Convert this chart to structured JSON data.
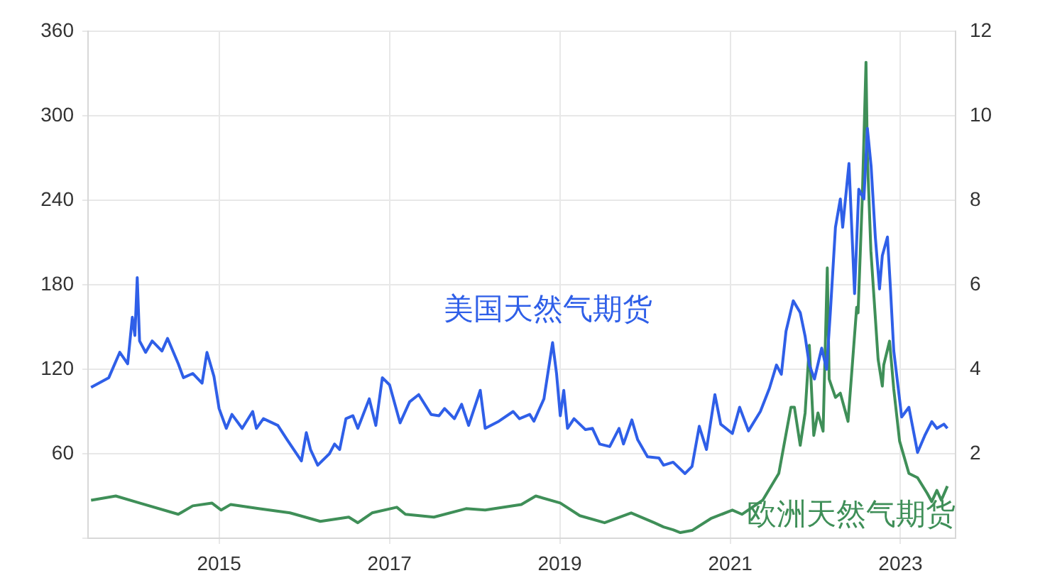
{
  "chart_data": {
    "type": "line",
    "xlim": [
      "2013-06-18",
      "2023-08-25"
    ],
    "xticks": [
      "2015",
      "2017",
      "2019",
      "2021",
      "2023"
    ],
    "ylim": [
      0,
      360
    ],
    "yticks": [
      {
        "value": 0,
        "label": null
      },
      60,
      120,
      180,
      240,
      300,
      360
    ],
    "y2lim": [
      0,
      12
    ],
    "y2ticks": [
      2,
      4,
      6,
      8,
      10,
      12
    ],
    "grid": true,
    "legend": false,
    "marker": "none",
    "line_style": "solid",
    "series": [
      {
        "name": "美国天然气期货",
        "color": "#2f5fe8",
        "axis": "y2",
        "x": [
          "2013-07-01",
          "2013-09-15",
          "2013-11-01",
          "2013-12-05",
          "2013-12-25",
          "2014-01-05",
          "2014-01-15",
          "2014-01-25",
          "2014-02-20",
          "2014-03-20",
          "2014-05-01",
          "2014-05-25",
          "2014-07-10",
          "2014-08-01",
          "2014-09-10",
          "2014-10-20",
          "2014-11-10",
          "2014-12-10",
          "2015-01-01",
          "2015-02-01",
          "2015-02-25",
          "2015-04-10",
          "2015-05-25",
          "2015-06-10",
          "2015-07-10",
          "2015-09-10",
          "2015-10-20",
          "2015-12-20",
          "2016-01-10",
          "2016-01-28",
          "2016-02-28",
          "2016-04-18",
          "2016-05-10",
          "2016-06-01",
          "2016-06-28",
          "2016-07-28",
          "2016-08-18",
          "2016-10-06",
          "2016-11-03",
          "2016-12-01",
          "2017-01-01",
          "2017-02-15",
          "2017-03-28",
          "2017-05-06",
          "2017-06-28",
          "2017-08-01",
          "2017-08-25",
          "2017-10-06",
          "2017-11-06",
          "2017-12-06",
          "2018-01-25",
          "2018-02-15",
          "2018-04-15",
          "2018-06-15",
          "2018-07-12",
          "2018-08-25",
          "2018-09-12",
          "2018-10-25",
          "2018-12-01",
          "2018-12-18",
          "2019-01-03",
          "2019-01-18",
          "2019-02-03",
          "2019-03-03",
          "2019-04-21",
          "2019-05-21",
          "2019-06-21",
          "2019-08-03",
          "2019-09-12",
          "2019-10-01",
          "2019-11-06",
          "2019-12-01",
          "2020-01-12",
          "2020-03-01",
          "2020-03-21",
          "2020-05-01",
          "2020-06-21",
          "2020-07-21",
          "2020-08-21",
          "2020-09-21",
          "2020-10-27",
          "2020-11-21",
          "2021-01-10",
          "2021-02-10",
          "2021-03-20",
          "2021-05-10",
          "2021-06-18",
          "2021-07-18",
          "2021-08-08",
          "2021-08-28",
          "2021-09-28",
          "2021-10-28",
          "2021-11-18",
          "2021-12-06",
          "2021-12-28",
          "2022-01-28",
          "2022-02-18",
          "2022-03-06",
          "2022-03-28",
          "2022-04-18",
          "2022-04-28",
          "2022-05-25",
          "2022-06-18",
          "2022-07-06",
          "2022-07-28",
          "2022-08-12",
          "2022-08-28",
          "2022-09-15",
          "2022-10-03",
          "2022-10-15",
          "2022-11-06",
          "2022-11-18",
          "2022-12-03",
          "2023-01-06",
          "2023-02-06",
          "2023-03-15",
          "2023-04-15",
          "2023-05-15",
          "2023-06-06",
          "2023-07-06",
          "2023-07-21"
        ],
        "values": [
          3.57,
          3.8,
          4.4,
          4.13,
          5.23,
          4.8,
          6.17,
          4.67,
          4.4,
          4.67,
          4.43,
          4.73,
          4.13,
          3.8,
          3.9,
          3.67,
          4.4,
          3.83,
          3.07,
          2.6,
          2.93,
          2.6,
          3.0,
          2.6,
          2.83,
          2.67,
          2.33,
          1.83,
          2.5,
          2.1,
          1.73,
          2.0,
          2.23,
          2.1,
          2.83,
          2.9,
          2.6,
          3.3,
          2.67,
          3.8,
          3.63,
          2.73,
          3.23,
          3.4,
          2.93,
          2.9,
          3.07,
          2.83,
          3.17,
          2.67,
          3.5,
          2.6,
          2.77,
          3.0,
          2.83,
          2.93,
          2.77,
          3.3,
          4.63,
          3.9,
          2.9,
          3.5,
          2.6,
          2.83,
          2.57,
          2.6,
          2.23,
          2.17,
          2.6,
          2.23,
          2.8,
          2.33,
          1.93,
          1.9,
          1.73,
          1.8,
          1.53,
          1.7,
          2.65,
          2.1,
          3.4,
          2.7,
          2.48,
          3.1,
          2.54,
          3.0,
          3.55,
          4.1,
          3.88,
          4.9,
          5.62,
          5.34,
          4.78,
          4.1,
          3.77,
          4.5,
          4.0,
          5.34,
          7.36,
          8.03,
          7.36,
          8.87,
          5.79,
          8.26,
          8.03,
          9.7,
          8.8,
          7.13,
          5.9,
          6.69,
          7.13,
          6.0,
          4.44,
          2.87,
          3.1,
          2.03,
          2.43,
          2.76,
          2.6,
          2.7,
          2.6
        ]
      },
      {
        "name": "欧洲天然气期货",
        "color": "#3f8f58",
        "x": [
          "2013-07-01",
          "2013-10-15",
          "2014-01-25",
          "2014-07-10",
          "2014-09-10",
          "2014-12-01",
          "2015-01-10",
          "2015-02-20",
          "2015-06-20",
          "2015-11-01",
          "2016-03-10",
          "2016-07-10",
          "2016-08-18",
          "2016-10-18",
          "2017-02-01",
          "2017-03-10",
          "2017-07-10",
          "2017-11-25",
          "2018-02-15",
          "2018-07-20",
          "2018-09-20",
          "2019-01-03",
          "2019-03-28",
          "2019-07-12",
          "2019-11-03",
          "2020-02-10",
          "2020-03-21",
          "2020-05-01",
          "2020-06-01",
          "2020-07-21",
          "2020-10-10",
          "2021-01-10",
          "2021-02-20",
          "2021-05-20",
          "2021-07-28",
          "2021-09-18",
          "2021-10-03",
          "2021-10-28",
          "2021-11-18",
          "2021-12-06",
          "2021-12-25",
          "2022-01-12",
          "2022-02-03",
          "2022-02-21",
          "2022-03-01",
          "2022-03-28",
          "2022-04-18",
          "2022-05-21",
          "2022-06-27",
          "2022-07-03",
          "2022-07-21",
          "2022-08-06",
          "2022-08-12",
          "2022-08-27",
          "2022-09-27",
          "2022-10-15",
          "2022-10-21",
          "2022-11-15",
          "2022-12-03",
          "2022-12-28",
          "2023-02-06",
          "2023-03-15",
          "2023-04-25",
          "2023-05-15",
          "2023-06-06",
          "2023-06-25",
          "2023-07-21"
        ],
        "values": [
          27,
          30,
          25,
          17,
          23,
          25,
          20,
          24,
          21,
          18,
          12,
          15,
          11,
          18,
          22,
          17,
          15,
          21,
          20,
          24,
          30,
          25,
          16,
          11,
          18,
          11,
          8,
          6,
          4,
          5.5,
          14,
          20,
          17,
          27,
          46,
          93,
          93,
          66,
          89,
          137,
          73,
          89,
          76,
          192,
          113,
          100,
          103,
          83,
          164,
          160,
          241,
          338,
          271,
          204,
          127,
          108,
          123,
          140,
          106,
          69,
          46,
          43,
          32,
          26,
          34,
          27,
          37
        ]
      }
    ]
  }
}
